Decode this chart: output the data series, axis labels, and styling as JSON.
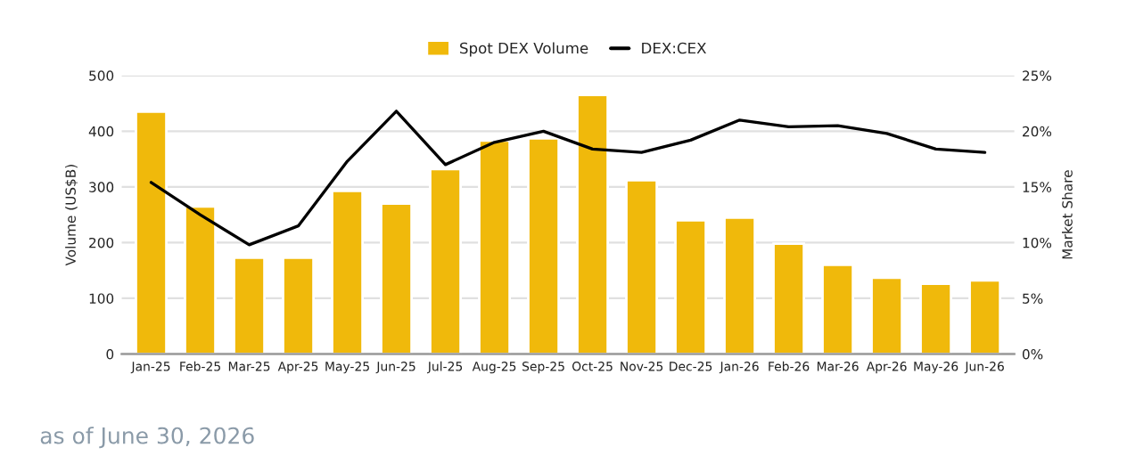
{
  "chart_data": {
    "type": "bar",
    "categories": [
      "Jan-25",
      "Feb-25",
      "Mar-25",
      "Apr-25",
      "May-25",
      "Jun-25",
      "Jul-25",
      "Aug-25",
      "Sep-25",
      "Oct-25",
      "Nov-25",
      "Dec-25",
      "Jan-26",
      "Feb-26",
      "Mar-26",
      "Apr-26",
      "May-26",
      "Jun-26"
    ],
    "series": [
      {
        "name": "Spot DEX Volume",
        "color": "#f0b90b",
        "values": [
          435,
          265,
          173,
          173,
          293,
          270,
          332,
          383,
          387,
          465,
          312,
          240,
          245,
          198,
          160,
          137,
          126,
          132
        ]
      },
      {
        "name": "DEX:CEX",
        "type": "line",
        "axis": "y2",
        "color": "#000000",
        "values": [
          15.4,
          12.5,
          9.8,
          11.5,
          17.3,
          21.8,
          17.0,
          19.0,
          20.0,
          18.4,
          18.1,
          19.2,
          21.0,
          20.4,
          20.5,
          19.8,
          18.4,
          18.1
        ]
      }
    ],
    "ylabel": "Volume (US$B)",
    "y2label": "Market Share",
    "ylim": [
      0,
      500
    ],
    "yticks": [
      0,
      100,
      200,
      300,
      400,
      500
    ],
    "y2lim": [
      0,
      25
    ],
    "y2ticks": [
      {
        "value": 0,
        "label": "0%"
      },
      {
        "value": 5,
        "label": "5%"
      },
      {
        "value": 10,
        "label": "10%"
      },
      {
        "value": 15,
        "label": "15%"
      },
      {
        "value": 20,
        "label": "20%"
      },
      {
        "value": 25,
        "label": "25%"
      }
    ],
    "grid": "y",
    "legend": "top",
    "marker": "none",
    "line_style": "solid",
    "annotations": [
      "as of June 30, 2026"
    ]
  }
}
